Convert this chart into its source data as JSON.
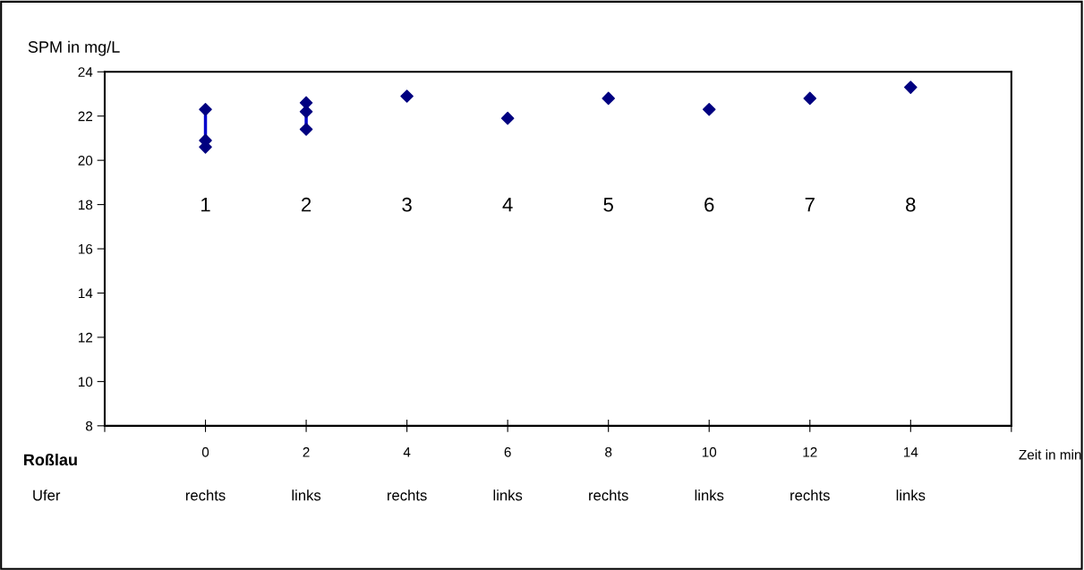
{
  "chart_data": {
    "type": "scatter",
    "ylabel": "SPM in mg/L",
    "xlabel": "Zeit in min",
    "xlim": [
      -2,
      16
    ],
    "ylim": [
      8,
      24
    ],
    "xticks": [
      {
        "value": -2,
        "label": null
      },
      0,
      2,
      4,
      6,
      8,
      10,
      12,
      14,
      {
        "value": 16,
        "label": null
      }
    ],
    "yticks": [
      8,
      10,
      12,
      14,
      16,
      18,
      20,
      22,
      24
    ],
    "grid": false,
    "legend": false,
    "marker": "diamond",
    "series": [
      {
        "type": "line",
        "color": "#0000cc",
        "x": [
          0,
          0
        ],
        "values": [
          22.3,
          20.6
        ],
        "marker": "none"
      },
      {
        "type": "line",
        "color": "#0000cc",
        "x": [
          2,
          2
        ],
        "values": [
          22.6,
          21.4
        ],
        "marker": "none"
      },
      {
        "color": "#000080",
        "x": [
          0,
          0,
          0,
          2,
          2,
          2,
          4,
          6,
          8,
          10,
          12,
          14
        ],
        "values": [
          22.3,
          20.9,
          20.6,
          22.6,
          22.2,
          21.4,
          22.9,
          21.9,
          22.8,
          22.3,
          22.8,
          23.3
        ]
      }
    ],
    "annotations": [
      "Roßlau",
      "Ufer",
      "1",
      "2",
      "3",
      "4",
      "5",
      "6",
      "7",
      "8",
      "rechts",
      "links",
      "rechts",
      "links",
      "rechts",
      "links",
      "rechts",
      "links"
    ]
  }
}
